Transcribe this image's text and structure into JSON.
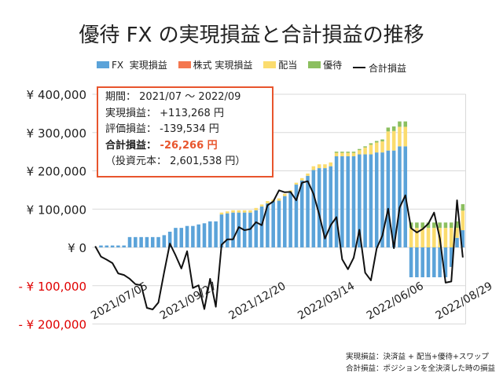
{
  "chart_data": {
    "type": "bar",
    "title": "優待 FX の実現損益と合計損益の推移",
    "stacked": true,
    "grid": true,
    "legend_placement": "top",
    "ylim": [
      -200000,
      400000
    ],
    "yticks": [
      {
        "value": 400000,
        "label": "¥ 400,000"
      },
      {
        "value": 300000,
        "label": "¥ 300,000"
      },
      {
        "value": 200000,
        "label": "¥ 200,000"
      },
      {
        "value": 100000,
        "label": "¥ 100,000"
      },
      {
        "value": 0,
        "label": "¥ 0"
      },
      {
        "value": -100000,
        "label": "- ¥ 100,000"
      },
      {
        "value": -200000,
        "label": "- ¥ 200,000"
      }
    ],
    "negative_tick_color": "#e00000",
    "xtick_labels": [
      {
        "index": 0,
        "label": "2021/07/05"
      },
      {
        "index": 12,
        "label": "2021/09/27"
      },
      {
        "index": 24,
        "label": "2021/12/20"
      },
      {
        "index": 36,
        "label": "2022/03/14"
      },
      {
        "index": 48,
        "label": "2022/06/06"
      },
      {
        "index": 60,
        "label": "2022/08/29"
      }
    ],
    "period_count": 65,
    "series": [
      {
        "name": "FX  実現損益",
        "kind": "bar",
        "color": "#5ba3d9",
        "values": [
          0,
          5000,
          5000,
          5000,
          5000,
          5000,
          27000,
          27000,
          27000,
          27000,
          27000,
          27000,
          32000,
          41000,
          51000,
          51000,
          56000,
          56000,
          60000,
          63000,
          68000,
          68000,
          86000,
          89000,
          91000,
          91000,
          91000,
          91000,
          97000,
          107000,
          115000,
          120000,
          122000,
          134000,
          144000,
          164000,
          175000,
          187000,
          202000,
          207000,
          207000,
          212000,
          238000,
          238000,
          238000,
          238000,
          243000,
          243000,
          243000,
          248000,
          248000,
          253000,
          253000,
          264000,
          264000,
          -78000,
          -78000,
          -78000,
          -78000,
          -78000,
          -78000,
          -78000,
          -51000,
          25000,
          45000
        ]
      },
      {
        "name": "株式 実現損益",
        "kind": "bar",
        "color": "#f4774f",
        "values": [
          0,
          0,
          0,
          0,
          0,
          0,
          0,
          0,
          0,
          0,
          0,
          0,
          0,
          0,
          0,
          0,
          0,
          0,
          0,
          0,
          0,
          0,
          0,
          0,
          0,
          0,
          0,
          0,
          0,
          0,
          0,
          0,
          0,
          0,
          0,
          0,
          0,
          0,
          0,
          0,
          0,
          0,
          0,
          0,
          0,
          0,
          0,
          0,
          0,
          0,
          0,
          0,
          0,
          0,
          0,
          0,
          0,
          0,
          0,
          0,
          0,
          0,
          0,
          0,
          0
        ]
      },
      {
        "name": "配当",
        "kind": "bar",
        "color": "#fbdc6e",
        "values": [
          0,
          0,
          0,
          0,
          0,
          0,
          0,
          0,
          0,
          0,
          0,
          0,
          0,
          0,
          0,
          0,
          0,
          0,
          0,
          0,
          0,
          0,
          5000,
          5000,
          6000,
          6000,
          6000,
          6000,
          6000,
          5000,
          6000,
          5000,
          6000,
          6000,
          5000,
          5000,
          6000,
          6000,
          10000,
          10000,
          10000,
          10000,
          9000,
          9000,
          9000,
          9000,
          11000,
          18000,
          25000,
          26000,
          29000,
          50000,
          51000,
          51000,
          51000,
          51000,
          51000,
          51000,
          51000,
          51000,
          51000,
          51000,
          51000,
          26000,
          51000
        ]
      },
      {
        "name": "優待",
        "kind": "bar",
        "color": "#8cbf5f",
        "values": [
          0,
          0,
          0,
          0,
          0,
          0,
          0,
          0,
          0,
          0,
          0,
          0,
          0,
          0,
          0,
          0,
          0,
          0,
          0,
          0,
          0,
          0,
          0,
          0,
          0,
          0,
          0,
          0,
          0,
          0,
          0,
          0,
          0,
          0,
          0,
          0,
          0,
          0,
          0,
          0,
          0,
          0,
          3000,
          3000,
          3000,
          3000,
          3000,
          3000,
          4000,
          4000,
          5000,
          10000,
          12000,
          14000,
          14000,
          14000,
          14000,
          14000,
          14000,
          14000,
          14000,
          14000,
          14000,
          17000,
          17000
        ]
      },
      {
        "name": "合計損益",
        "kind": "line",
        "color": "#111111",
        "values": [
          3000,
          -24000,
          -32000,
          -41000,
          -68000,
          -72000,
          -82000,
          -96000,
          -99000,
          -158000,
          -162000,
          -144000,
          -65000,
          10000,
          -21000,
          -55000,
          -10000,
          -106000,
          -99000,
          -161000,
          -82000,
          -155000,
          7000,
          21000,
          21000,
          53000,
          45000,
          48000,
          66000,
          58000,
          110000,
          120000,
          149000,
          144000,
          145000,
          123000,
          169000,
          173000,
          140000,
          86000,
          23000,
          58000,
          79000,
          -31000,
          -57000,
          -27000,
          46000,
          -66000,
          -86000,
          -3000,
          31000,
          101000,
          -2000,
          104000,
          136000,
          50000,
          39000,
          48000,
          62000,
          91000,
          24000,
          -92000,
          -89000,
          123000,
          -26266
        ]
      }
    ]
  },
  "summary_box": {
    "border_color": "#e8552d",
    "period_label": "期間：",
    "period_value": "2021/07 ～ 2022/09",
    "realized_label": "実現損益：",
    "realized_value": "+113,268 円",
    "unrealized_label": "評価損益：",
    "unrealized_value": "-139,534 円",
    "total_label": "合計損益：",
    "total_value": "-26,266 円",
    "principal_text": "（投資元本： 2,601,538 円）"
  },
  "notes": [
    "実現損益：決済益 + 配当+優待+スワップ",
    "合計損益：ポジションを全決済した時の損益"
  ]
}
